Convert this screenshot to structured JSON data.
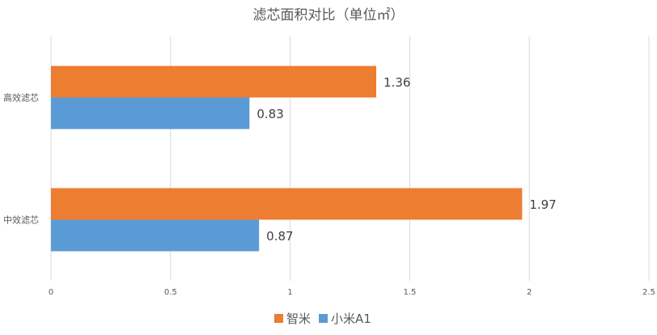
{
  "chart_data": {
    "type": "bar",
    "orientation": "horizontal",
    "title": "滤芯面积对比（单位㎡）",
    "categories": [
      "高效滤芯",
      "中效滤芯"
    ],
    "series": [
      {
        "name": "智米",
        "color": "#ED7D31",
        "values": [
          1.36,
          1.97
        ],
        "value_labels": [
          "1.36",
          "1.97"
        ]
      },
      {
        "name": "小米A1",
        "color": "#5B9BD5",
        "values": [
          0.83,
          0.87
        ],
        "value_labels": [
          "0.83",
          "0.87"
        ]
      }
    ],
    "xlim": [
      0,
      2.5
    ],
    "xticks": [
      "0",
      "0.5",
      "1",
      "1.5",
      "2",
      "2.5"
    ],
    "xtick_values": [
      0,
      0.5,
      1,
      1.5,
      2,
      2.5
    ],
    "grid": "vertical",
    "legend": "bottom-center",
    "gridline_color": "#D9D9D9",
    "text_color": "#595959"
  }
}
